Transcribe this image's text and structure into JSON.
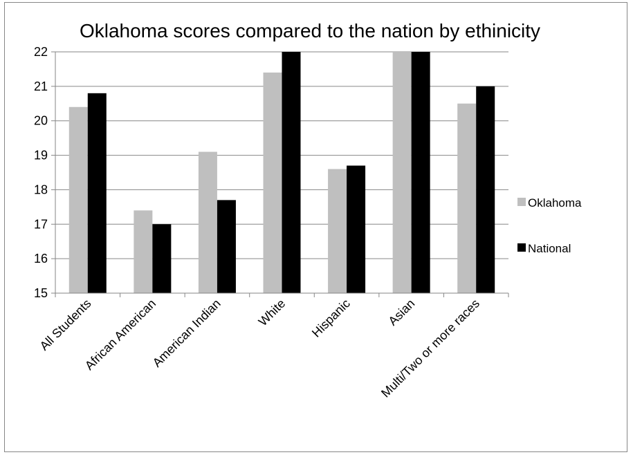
{
  "chart_data": {
    "type": "bar",
    "title": "Oklahoma scores compared to the nation by ethinicity",
    "xlabel": "",
    "ylabel": "",
    "categories": [
      "All Students",
      "African American",
      "American Indian",
      "White",
      "Hispanic",
      "Asian",
      "Multi/Two or more races"
    ],
    "series": [
      {
        "name": "Oklahoma",
        "color": "#bfbfbf",
        "values": [
          20.4,
          17.4,
          19.1,
          21.4,
          18.6,
          22.0,
          20.5
        ]
      },
      {
        "name": "National",
        "color": "#000000",
        "values": [
          20.8,
          17.0,
          17.7,
          22.0,
          18.7,
          22.0,
          21.0
        ]
      }
    ],
    "ylim": [
      15,
      22
    ],
    "yticks": [
      15,
      16,
      17,
      18,
      19,
      20,
      21,
      22
    ],
    "grid": true,
    "legend": "right"
  }
}
